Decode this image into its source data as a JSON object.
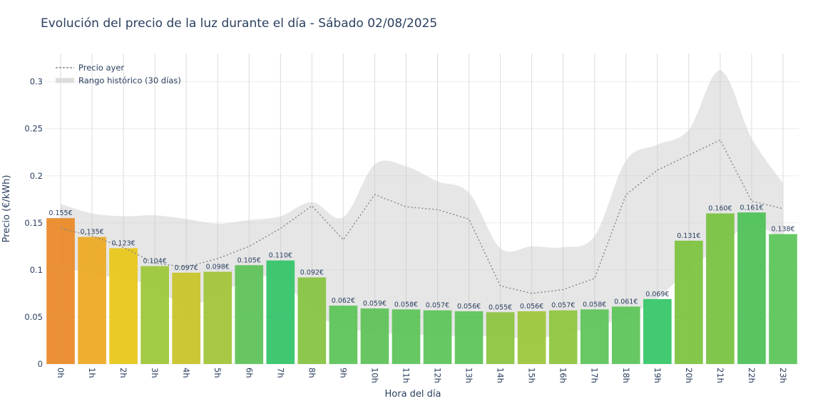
{
  "chart_data": {
    "type": "bar",
    "title": "Evolución del precio de la luz durante el día - Sábado 02/08/2025",
    "xlabel": "Hora del día",
    "ylabel": "Precio (€/kWh)",
    "ylim": [
      0,
      0.33
    ],
    "y_ticks": [
      "0",
      "0.05",
      "0.1",
      "0.15",
      "0.2",
      "0.25",
      "0.3"
    ],
    "grid": true,
    "legend_position": "top-left",
    "categories": [
      "0h",
      "1h",
      "2h",
      "3h",
      "4h",
      "5h",
      "6h",
      "7h",
      "8h",
      "9h",
      "10h",
      "11h",
      "12h",
      "13h",
      "14h",
      "15h",
      "16h",
      "17h",
      "18h",
      "19h",
      "20h",
      "21h",
      "22h",
      "23h"
    ],
    "series": [
      {
        "type": "bar",
        "values": [
          0.155,
          0.135,
          0.123,
          0.104,
          0.097,
          0.098,
          0.105,
          0.11,
          0.092,
          0.062,
          0.059,
          0.058,
          0.057,
          0.056,
          0.055,
          0.056,
          0.057,
          0.058,
          0.061,
          0.069,
          0.131,
          0.16,
          0.161,
          0.138
        ],
        "labels": [
          "0.155€",
          "0.135€",
          "0.123€",
          "0.104€",
          "0.097€",
          "0.098€",
          "0.105€",
          "0.110€",
          "0.092€",
          "0.062€",
          "0.059€",
          "0.058€",
          "0.057€",
          "0.056€",
          "0.055€",
          "0.056€",
          "0.057€",
          "0.058€",
          "0.061€",
          "0.069€",
          "0.131€",
          "0.160€",
          "0.161€",
          "0.138€"
        ],
        "colors": [
          "#ea8a2a",
          "#edab26",
          "#e8c71a",
          "#9dc73a",
          "#c8c42a",
          "#a1c53a",
          "#5fc35a",
          "#35c46a",
          "#88c445",
          "#5ec55a",
          "#60c35a",
          "#5ec55a",
          "#5ec55a",
          "#5ec55a",
          "#8ec542",
          "#9ec73c",
          "#90c640",
          "#5fc55c",
          "#5ec55a",
          "#38c76a",
          "#7dc440",
          "#7ac342",
          "#4fc25a",
          "#5ec55a"
        ]
      },
      {
        "name": "Precio ayer",
        "type": "line",
        "values": [
          0.144,
          0.136,
          0.124,
          0.107,
          0.103,
          0.112,
          0.125,
          0.144,
          0.168,
          0.132,
          0.18,
          0.167,
          0.164,
          0.154,
          0.083,
          0.075,
          0.079,
          0.091,
          0.18,
          0.206,
          0.222,
          0.238,
          0.173,
          0.165
        ]
      },
      {
        "name": "Rango histórico (30 días)",
        "type": "area",
        "upper": [
          0.17,
          0.16,
          0.157,
          0.158,
          0.154,
          0.149,
          0.153,
          0.157,
          0.172,
          0.156,
          0.212,
          0.21,
          0.194,
          0.182,
          0.123,
          0.125,
          0.124,
          0.136,
          0.216,
          0.233,
          0.249,
          0.312,
          0.24,
          0.192
        ],
        "lower": [
          0.105,
          0.095,
          0.091,
          0.082,
          0.061,
          0.074,
          0.089,
          0.091,
          0.055,
          0.04,
          0.033,
          0.032,
          0.03,
          0.03,
          0.029,
          0.027,
          0.032,
          0.04,
          0.05,
          0.07,
          0.1,
          0.125,
          0.148,
          0.131
        ]
      }
    ]
  }
}
